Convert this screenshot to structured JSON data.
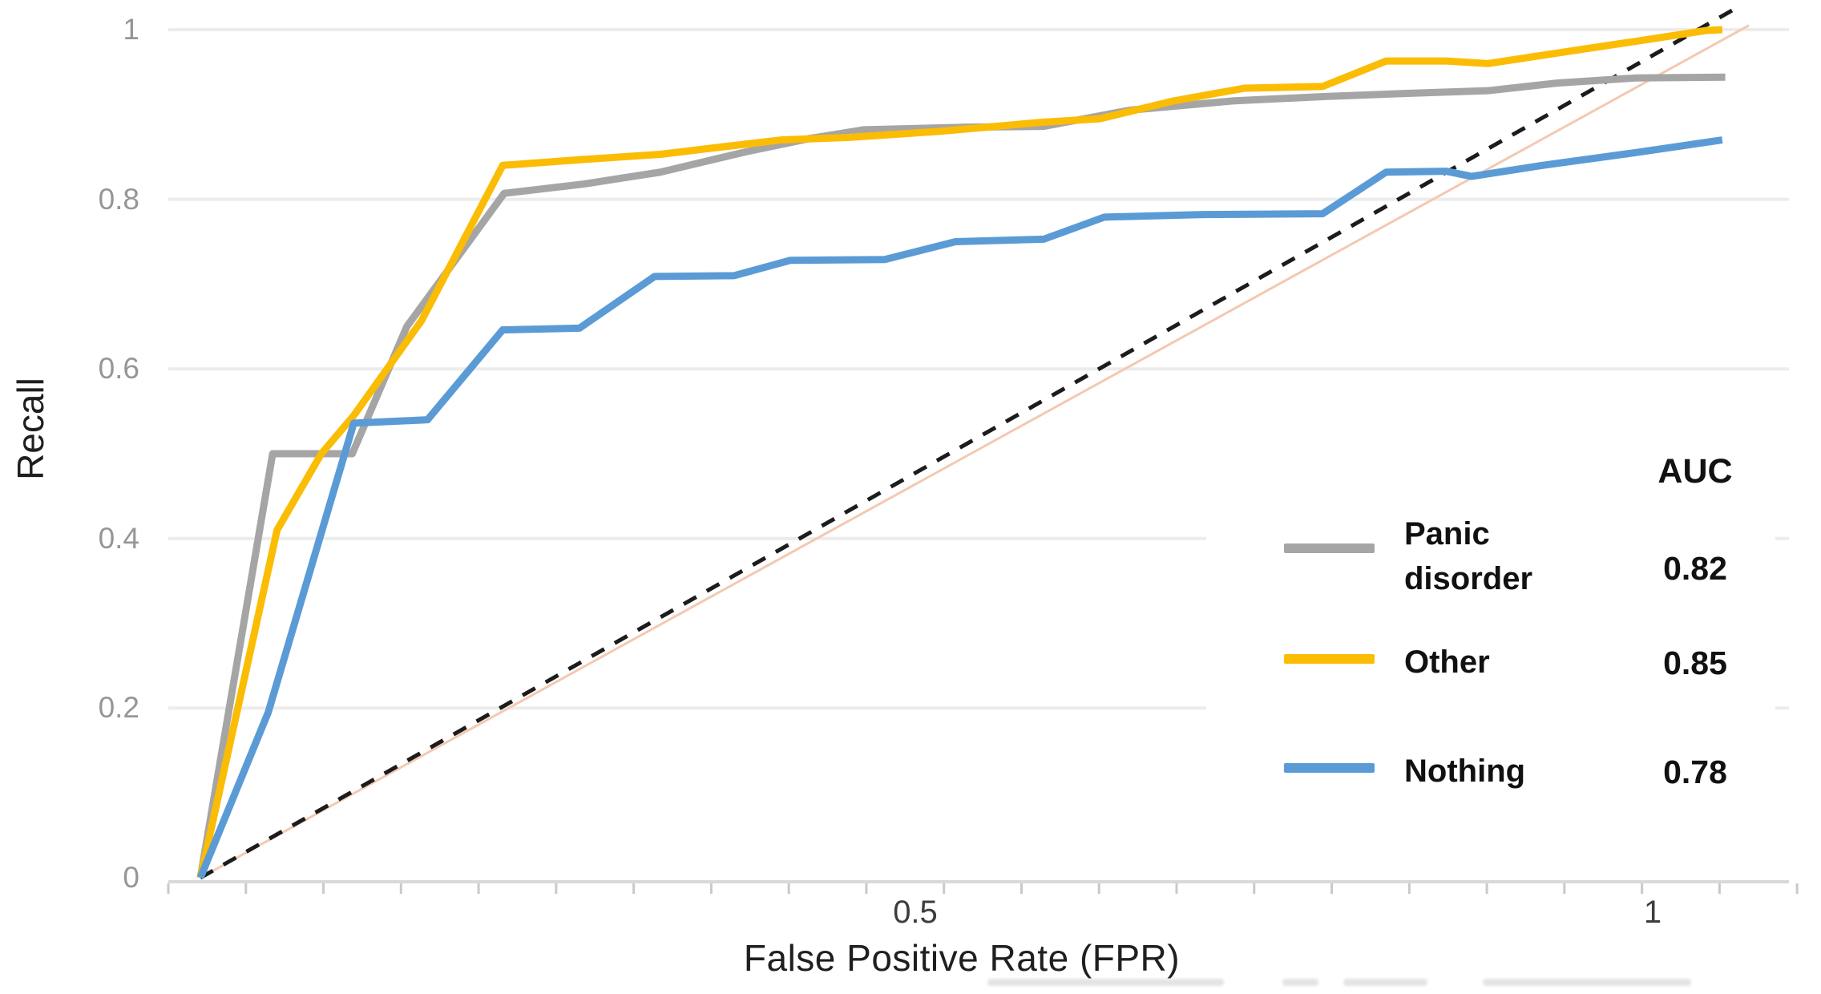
{
  "chart_data": {
    "type": "line",
    "title": "",
    "xlabel": "False Positive Rate (FPR)",
    "ylabel": "Recall",
    "xlim": [
      0,
      1.05
    ],
    "ylim": [
      0,
      1.03
    ],
    "grid": "horizontal-only",
    "x_ticks": [
      {
        "value": 0.5,
        "label": "0.5"
      },
      {
        "value": 1.0,
        "label": "1"
      }
    ],
    "y_ticks": [
      {
        "value": 0,
        "label": "0"
      },
      {
        "value": 0.2,
        "label": "0.2"
      },
      {
        "value": 0.4,
        "label": "0.4"
      },
      {
        "value": 0.6,
        "label": "0.6"
      },
      {
        "value": 0.8,
        "label": "0.8"
      },
      {
        "value": 1.0,
        "label": "1"
      }
    ],
    "legend_position": "inset bottom-right",
    "legend_header": "AUC",
    "series": [
      {
        "name": "Panic disorder",
        "auc": "0.82",
        "color": "#A5A5A5",
        "points": [
          [
            0,
            0
          ],
          [
            0.049,
            0.5
          ],
          [
            0.103,
            0.5
          ],
          [
            0.14,
            0.65
          ],
          [
            0.206,
            0.807
          ],
          [
            0.26,
            0.818
          ],
          [
            0.312,
            0.832
          ],
          [
            0.37,
            0.856
          ],
          [
            0.414,
            0.872
          ],
          [
            0.45,
            0.882
          ],
          [
            0.52,
            0.885
          ],
          [
            0.572,
            0.886
          ],
          [
            0.63,
            0.905
          ],
          [
            0.7,
            0.916
          ],
          [
            0.76,
            0.921
          ],
          [
            0.82,
            0.925
          ],
          [
            0.873,
            0.928
          ],
          [
            0.92,
            0.937
          ],
          [
            0.973,
            0.943
          ],
          [
            1.034,
            0.944
          ]
        ]
      },
      {
        "name": "Other",
        "auc": "0.85",
        "color": "#FBBC04",
        "points": [
          [
            0,
            0
          ],
          [
            0.052,
            0.41
          ],
          [
            0.082,
            0.5
          ],
          [
            0.104,
            0.545
          ],
          [
            0.15,
            0.657
          ],
          [
            0.205,
            0.84
          ],
          [
            0.26,
            0.847
          ],
          [
            0.312,
            0.853
          ],
          [
            0.355,
            0.862
          ],
          [
            0.394,
            0.87
          ],
          [
            0.44,
            0.873
          ],
          [
            0.5,
            0.88
          ],
          [
            0.572,
            0.891
          ],
          [
            0.61,
            0.895
          ],
          [
            0.66,
            0.916
          ],
          [
            0.708,
            0.931
          ],
          [
            0.761,
            0.933
          ],
          [
            0.804,
            0.963
          ],
          [
            0.845,
            0.963
          ],
          [
            0.873,
            0.96
          ],
          [
            0.93,
            0.975
          ],
          [
            0.98,
            0.988
          ],
          [
            1.021,
            0.999
          ],
          [
            1.032,
            1.0
          ]
        ]
      },
      {
        "name": "Nothing",
        "auc": "0.78",
        "color": "#5B9BD5",
        "points": [
          [
            0,
            0
          ],
          [
            0.046,
            0.195
          ],
          [
            0.104,
            0.536
          ],
          [
            0.154,
            0.54
          ],
          [
            0.205,
            0.646
          ],
          [
            0.257,
            0.648
          ],
          [
            0.308,
            0.709
          ],
          [
            0.362,
            0.71
          ],
          [
            0.4,
            0.728
          ],
          [
            0.464,
            0.729
          ],
          [
            0.512,
            0.75
          ],
          [
            0.572,
            0.753
          ],
          [
            0.613,
            0.779
          ],
          [
            0.68,
            0.782
          ],
          [
            0.761,
            0.783
          ],
          [
            0.804,
            0.832
          ],
          [
            0.845,
            0.833
          ],
          [
            0.862,
            0.827
          ],
          [
            0.91,
            0.84
          ],
          [
            0.973,
            0.855
          ],
          [
            1.032,
            0.87
          ]
        ]
      }
    ],
    "reference_lines": [
      {
        "name": "chance-diagonal-underlay",
        "style": "solid",
        "color": "#F3C9B1",
        "width": 3,
        "points": [
          [
            0,
            0
          ],
          [
            1.05,
            1.005
          ]
        ]
      },
      {
        "name": "chance-diagonal",
        "style": "dashed",
        "color": "#1c1c1c",
        "width": 5,
        "points": [
          [
            0,
            0
          ],
          [
            1.042,
            1.026
          ]
        ]
      }
    ],
    "colors": {
      "gridline": "#ECECEC",
      "axis_line": "#D9D9D9",
      "tick_mark": "#C9C9C9",
      "y_tick_text": "#969696",
      "x_tick_text": "#3d3d3d"
    }
  }
}
